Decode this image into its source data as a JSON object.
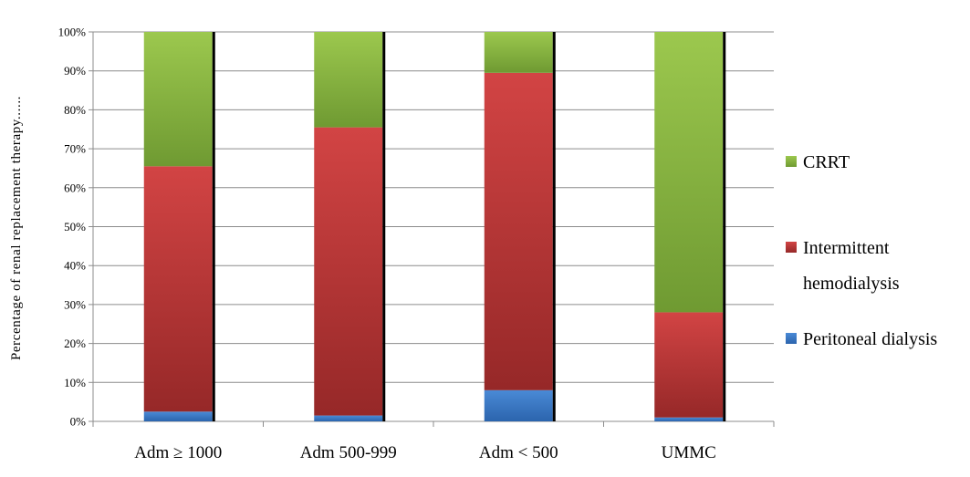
{
  "chart_data": {
    "type": "bar",
    "stacked": true,
    "percent": true,
    "title": "",
    "xlabel": "",
    "ylabel": "Percentage of renal replacement therapy......",
    "ylim": [
      0,
      100
    ],
    "yticks": [
      "0%",
      "10%",
      "20%",
      "30%",
      "40%",
      "50%",
      "60%",
      "70%",
      "80%",
      "90%",
      "100%"
    ],
    "categories": [
      "Adm ≥ 1000",
      "Adm 500-999",
      "Adm < 500",
      "UMMC"
    ],
    "series": [
      {
        "name": "Peritoneal dialysis",
        "values": [
          2.5,
          1.5,
          8,
          1
        ],
        "color": "#3a78c7"
      },
      {
        "name": "Intermittent hemodialysis",
        "values": [
          63,
          74,
          81.5,
          27
        ],
        "color": "#c23b3b"
      },
      {
        "name": "CRRT",
        "values": [
          34.5,
          24.5,
          10.5,
          72
        ],
        "color": "#8db545"
      }
    ],
    "legend": {
      "position": "right",
      "order": [
        {
          "series": 2,
          "lines": [
            "CRRT"
          ]
        },
        {
          "series": 1,
          "lines": [
            "Intermittent",
            "hemodialysis"
          ]
        },
        {
          "series": 0,
          "lines": [
            "Peritoneal dialysis"
          ]
        }
      ]
    },
    "grid": true
  }
}
